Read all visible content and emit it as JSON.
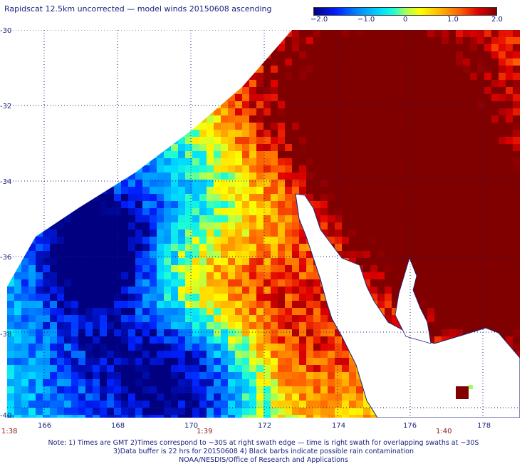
{
  "title": "Rapidscat 12.5km uncorrected — model winds 20150608 ascending",
  "colorbar": {
    "labels": [
      "−2.0",
      "−1.0",
      "0",
      "1.0",
      "2.0"
    ],
    "min": -2.0,
    "max": 2.0
  },
  "axes": {
    "lat_labels": [
      "-30",
      "-32",
      "-34",
      "-36",
      "-38",
      "-40"
    ],
    "lon_labels": [
      "166",
      "168",
      "170",
      "172",
      "174",
      "176",
      "178"
    ],
    "time_labels": [
      "1:38",
      "1:39",
      "1:40"
    ]
  },
  "note": {
    "line1": "Note: 1) Times are GMT 2)Times correspond to ~30S at right swath edge — time is right swath for overlapping swaths at ~30S",
    "line2": "3)Data buffer is 22 hrs for 20150608 4) Black barbs indicate possible rain contamination",
    "line3": "NOAA/NESDIS/Office of Research and Applications"
  },
  "colors": {
    "text": "#1a237e",
    "time_labels": "#8b1a1a",
    "grid": "#1a237e",
    "coastline": "#1a237e"
  }
}
